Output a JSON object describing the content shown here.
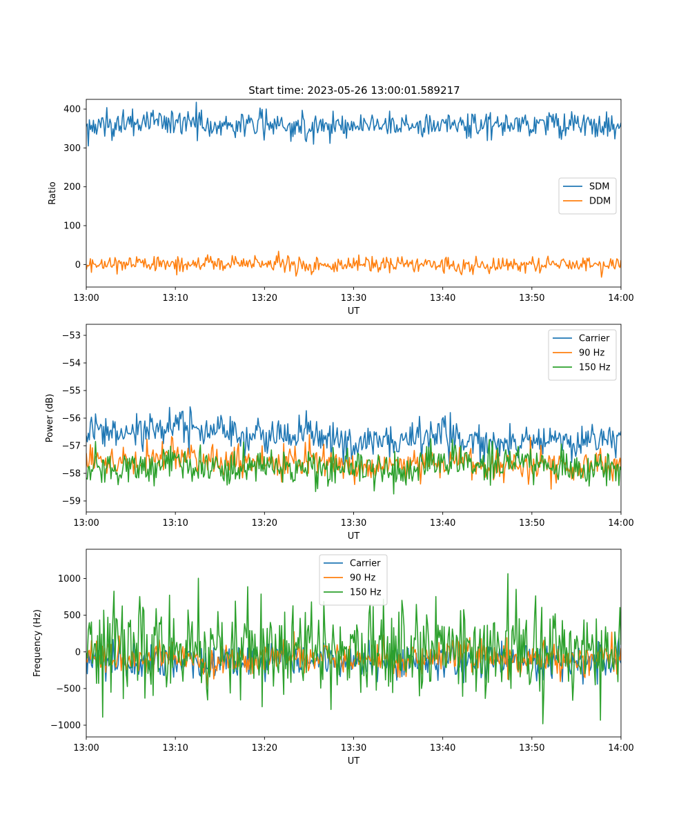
{
  "chart_data": [
    {
      "type": "line",
      "title": "Start time: 2023-05-26 13:00:01.589217",
      "xlabel": "UT",
      "ylabel": "Ratio",
      "xlim": [
        "13:00",
        "14:00"
      ],
      "x_ticks": [
        "13:00",
        "13:10",
        "13:20",
        "13:30",
        "13:40",
        "13:50",
        "14:00"
      ],
      "ylim": [
        -58,
        425
      ],
      "y_ticks": [
        0,
        100,
        200,
        300,
        400
      ],
      "grid": false,
      "legend": "center-right",
      "x": [
        "13:00",
        "13:05",
        "13:10",
        "13:15",
        "13:20",
        "13:25",
        "13:30",
        "13:35",
        "13:40",
        "13:45",
        "13:50",
        "13:55",
        "14:00"
      ],
      "series": [
        {
          "name": "SDM",
          "color": "#1f77b4",
          "values": [
            350,
            365,
            368,
            358,
            362,
            356,
            359,
            360,
            358,
            362,
            364,
            363,
            354
          ]
        },
        {
          "name": "DDM",
          "color": "#ff7f0e",
          "values": [
            -5,
            2,
            0,
            3,
            4,
            -2,
            0,
            1,
            -1,
            -3,
            2,
            0,
            0
          ]
        }
      ]
    },
    {
      "type": "line",
      "title": "",
      "xlabel": "UT",
      "ylabel": "Power (dB)",
      "xlim": [
        "13:00",
        "14:00"
      ],
      "x_ticks": [
        "13:00",
        "13:10",
        "13:20",
        "13:30",
        "13:40",
        "13:50",
        "14:00"
      ],
      "ylim": [
        -59.4,
        -52.6
      ],
      "y_ticks": [
        -53,
        -54,
        -55,
        -56,
        -57,
        -58,
        -59
      ],
      "grid": false,
      "legend": "top-right",
      "x": [
        "13:00",
        "13:05",
        "13:10",
        "13:15",
        "13:20",
        "13:25",
        "13:30",
        "13:35",
        "13:40",
        "13:45",
        "13:50",
        "13:55",
        "14:00"
      ],
      "series": [
        {
          "name": "Carrier",
          "color": "#1f77b4",
          "values": [
            -56.5,
            -56.6,
            -56.3,
            -56.7,
            -56.6,
            -56.5,
            -57.0,
            -56.9,
            -56.6,
            -56.9,
            -56.7,
            -56.9,
            -56.6
          ]
        },
        {
          "name": "90 Hz",
          "color": "#ff7f0e",
          "values": [
            -57.5,
            -57.6,
            -57.3,
            -57.6,
            -57.7,
            -57.4,
            -57.8,
            -57.8,
            -57.6,
            -57.8,
            -57.6,
            -57.8,
            -57.6
          ]
        },
        {
          "name": "150 Hz",
          "color": "#2ca02c",
          "values": [
            -57.8,
            -57.9,
            -57.5,
            -57.9,
            -57.8,
            -57.8,
            -57.8,
            -57.9,
            -57.6,
            -57.6,
            -57.6,
            -57.9,
            -57.8
          ]
        }
      ]
    },
    {
      "type": "line",
      "title": "",
      "xlabel": "UT",
      "ylabel": "Frequency (Hz)",
      "xlim": [
        "13:00",
        "14:00"
      ],
      "x_ticks": [
        "13:00",
        "13:10",
        "13:20",
        "13:30",
        "13:40",
        "13:50",
        "14:00"
      ],
      "ylim": [
        -1160,
        1400
      ],
      "y_ticks": [
        -1000,
        -500,
        0,
        500,
        1000
      ],
      "grid": false,
      "legend": "upper-center",
      "x": [
        "13:00",
        "13:05",
        "13:10",
        "13:15",
        "13:20",
        "13:25",
        "13:30",
        "13:35",
        "13:40",
        "13:45",
        "13:50",
        "13:55",
        "14:00"
      ],
      "series": [
        {
          "name": "Carrier",
          "color": "#1f77b4",
          "values": [
            -100,
            -150,
            -120,
            -180,
            -110,
            -130,
            -140,
            -150,
            -110,
            -120,
            -140,
            -130,
            -100
          ]
        },
        {
          "name": "90 Hz",
          "color": "#ff7f0e",
          "values": [
            -60,
            -100,
            -80,
            -130,
            -70,
            -90,
            -100,
            -110,
            -70,
            -80,
            -100,
            -90,
            -60
          ]
        },
        {
          "name": "150 Hz",
          "color": "#2ca02c",
          "values": [
            0,
            20,
            40,
            0,
            60,
            80,
            40,
            20,
            60,
            80,
            0,
            40,
            0
          ]
        }
      ]
    }
  ]
}
